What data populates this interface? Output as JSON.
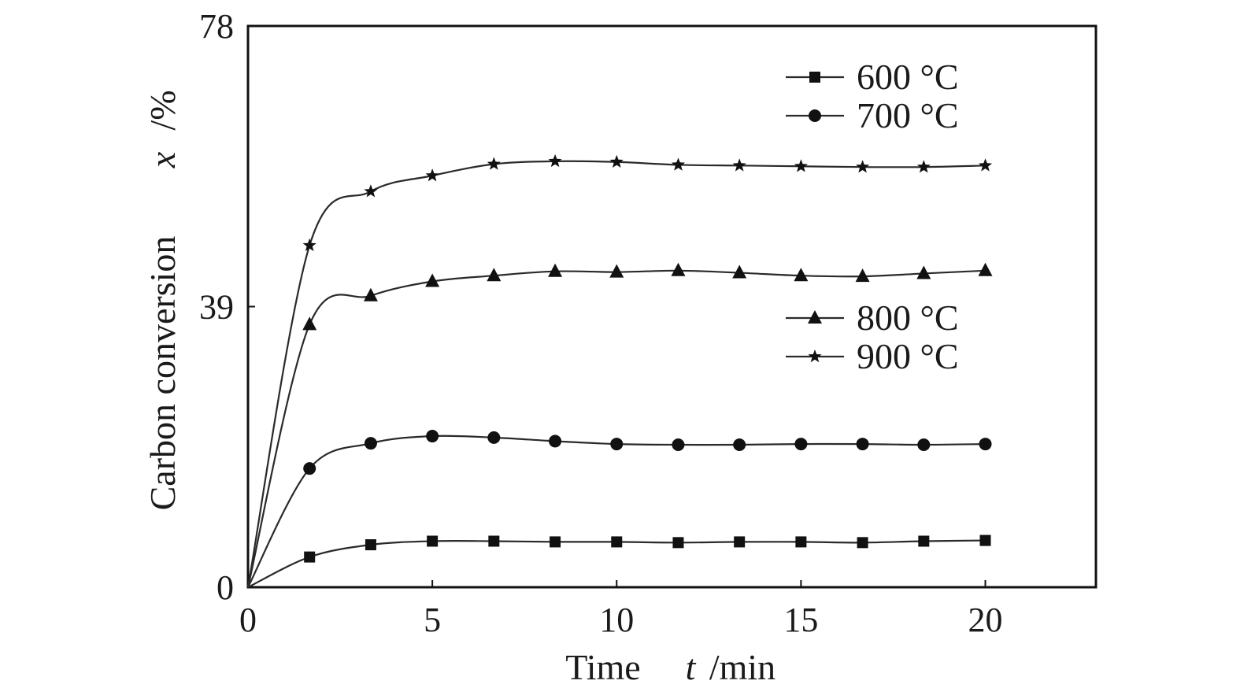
{
  "chart_data": {
    "type": "line",
    "title": "",
    "xlabel": {
      "name": "Time",
      "symbol": "t",
      "unit": "/min"
    },
    "ylabel": {
      "name": "Carbon conversion",
      "symbol": "x",
      "unit": "/%"
    },
    "xlim": [
      0,
      23
    ],
    "ylim": [
      0,
      78
    ],
    "xticks": [
      "0",
      "5",
      "10",
      "15",
      "20"
    ],
    "yticks": [
      "0",
      "39",
      "78"
    ],
    "legend_placement": "right, in two groups",
    "grid": false,
    "x": [
      0,
      1.67,
      3.33,
      5,
      6.67,
      8.33,
      10,
      11.67,
      13.33,
      15,
      16.67,
      18.33,
      20
    ],
    "series": [
      {
        "name": "600 °C",
        "marker": "square",
        "values": [
          0,
          4.2,
          5.9,
          6.4,
          6.4,
          6.3,
          6.3,
          6.2,
          6.3,
          6.3,
          6.2,
          6.4,
          6.5
        ]
      },
      {
        "name": "700 °C",
        "marker": "circle",
        "values": [
          0,
          16.5,
          20.0,
          21.0,
          20.8,
          20.3,
          19.9,
          19.8,
          19.8,
          19.9,
          19.9,
          19.8,
          19.9
        ]
      },
      {
        "name": "800 °C",
        "marker": "triangle",
        "values": [
          0,
          36.5,
          40.5,
          42.5,
          43.3,
          43.9,
          43.8,
          44.0,
          43.7,
          43.3,
          43.2,
          43.6,
          44.0
        ]
      },
      {
        "name": "900 °C",
        "marker": "star",
        "values": [
          0,
          47.5,
          55.0,
          57.2,
          58.8,
          59.2,
          59.1,
          58.7,
          58.6,
          58.5,
          58.4,
          58.4,
          58.6
        ]
      }
    ]
  }
}
